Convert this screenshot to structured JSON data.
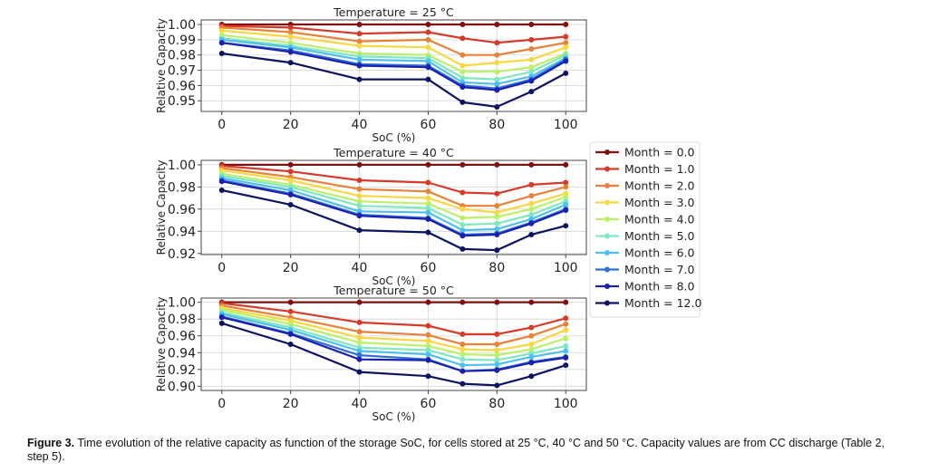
{
  "chart_data": [
    {
      "type": "line",
      "title": "Temperature = 25 °C",
      "xlabel": "SoC (%)",
      "ylabel": "Relative Capacity",
      "x": [
        0,
        20,
        40,
        60,
        70,
        80,
        90,
        100
      ],
      "xticks": [
        "0",
        "20",
        "40",
        "60",
        "80",
        "100"
      ],
      "xtick_values": [
        0,
        20,
        40,
        60,
        80,
        100
      ],
      "yticks": [
        "0.95",
        "0.96",
        "0.97",
        "0.98",
        "0.99",
        "1.00"
      ],
      "ytick_values": [
        0.95,
        0.96,
        0.97,
        0.98,
        0.99,
        1.0
      ],
      "xlim": [
        -6,
        106
      ],
      "ylim": [
        0.943,
        1.003
      ],
      "grid": true,
      "series": [
        {
          "name": "Month = 0.0",
          "values": [
            1.0,
            1.0,
            1.0,
            1.0,
            1.0,
            1.0,
            1.0,
            1.0
          ]
        },
        {
          "name": "Month = 1.0",
          "values": [
            0.999,
            0.998,
            0.994,
            0.995,
            0.991,
            0.988,
            0.99,
            0.992
          ]
        },
        {
          "name": "Month = 2.0",
          "values": [
            0.998,
            0.995,
            0.989,
            0.99,
            0.98,
            0.98,
            0.984,
            0.988
          ]
        },
        {
          "name": "Month = 3.0",
          "values": [
            0.996,
            0.992,
            0.986,
            0.985,
            0.973,
            0.975,
            0.977,
            0.985
          ]
        },
        {
          "name": "Month = 4.0",
          "values": [
            0.993,
            0.988,
            0.981,
            0.98,
            0.969,
            0.969,
            0.972,
            0.981
          ]
        },
        {
          "name": "Month = 5.0",
          "values": [
            0.991,
            0.986,
            0.979,
            0.978,
            0.965,
            0.964,
            0.969,
            0.98
          ]
        },
        {
          "name": "Month = 6.0",
          "values": [
            0.99,
            0.985,
            0.977,
            0.976,
            0.962,
            0.961,
            0.966,
            0.978
          ]
        },
        {
          "name": "Month = 7.0",
          "values": [
            0.988,
            0.983,
            0.974,
            0.973,
            0.96,
            0.958,
            0.964,
            0.977
          ]
        },
        {
          "name": "Month = 8.0",
          "values": [
            0.988,
            0.982,
            0.973,
            0.972,
            0.959,
            0.957,
            0.963,
            0.976
          ]
        },
        {
          "name": "Month = 12.0",
          "values": [
            0.981,
            0.975,
            0.964,
            0.964,
            0.949,
            0.946,
            0.956,
            0.968
          ]
        }
      ]
    },
    {
      "type": "line",
      "title": "Temperature = 40 °C",
      "xlabel": "SoC (%)",
      "ylabel": "Relative Capacity",
      "x": [
        0,
        20,
        40,
        60,
        70,
        80,
        90,
        100
      ],
      "xticks": [
        "0",
        "20",
        "40",
        "60",
        "80",
        "100"
      ],
      "xtick_values": [
        0,
        20,
        40,
        60,
        80,
        100
      ],
      "yticks": [
        "0.92",
        "0.94",
        "0.96",
        "0.98",
        "1.00"
      ],
      "ytick_values": [
        0.92,
        0.94,
        0.96,
        0.98,
        1.0
      ],
      "xlim": [
        -6,
        106
      ],
      "ylim": [
        0.919,
        1.004
      ],
      "grid": true,
      "series": [
        {
          "name": "Month = 0.0",
          "values": [
            1.0,
            1.0,
            1.0,
            1.0,
            1.0,
            1.0,
            1.0,
            1.0
          ]
        },
        {
          "name": "Month = 1.0",
          "values": [
            0.999,
            0.994,
            0.986,
            0.984,
            0.975,
            0.974,
            0.982,
            0.984
          ]
        },
        {
          "name": "Month = 2.0",
          "values": [
            0.997,
            0.989,
            0.978,
            0.976,
            0.963,
            0.963,
            0.972,
            0.98
          ]
        },
        {
          "name": "Month = 3.0",
          "values": [
            0.995,
            0.986,
            0.972,
            0.97,
            0.96,
            0.957,
            0.965,
            0.974
          ]
        },
        {
          "name": "Month = 4.0",
          "values": [
            0.992,
            0.982,
            0.967,
            0.965,
            0.952,
            0.953,
            0.96,
            0.971
          ]
        },
        {
          "name": "Month = 5.0",
          "values": [
            0.99,
            0.98,
            0.963,
            0.961,
            0.946,
            0.947,
            0.955,
            0.967
          ]
        },
        {
          "name": "Month = 6.0",
          "values": [
            0.988,
            0.977,
            0.958,
            0.957,
            0.941,
            0.942,
            0.951,
            0.964
          ]
        },
        {
          "name": "Month = 7.0",
          "values": [
            0.986,
            0.974,
            0.955,
            0.952,
            0.937,
            0.938,
            0.948,
            0.96
          ]
        },
        {
          "name": "Month = 8.0",
          "values": [
            0.985,
            0.973,
            0.954,
            0.951,
            0.936,
            0.937,
            0.947,
            0.959
          ]
        },
        {
          "name": "Month = 12.0",
          "values": [
            0.977,
            0.964,
            0.941,
            0.939,
            0.924,
            0.923,
            0.937,
            0.945
          ]
        }
      ]
    },
    {
      "type": "line",
      "title": "Temperature = 50 °C",
      "xlabel": "SoC (%)",
      "ylabel": "Relative Capacity",
      "x": [
        0,
        20,
        40,
        60,
        70,
        80,
        90,
        100
      ],
      "xticks": [
        "0",
        "20",
        "40",
        "60",
        "80",
        "100"
      ],
      "xtick_values": [
        0,
        20,
        40,
        60,
        80,
        100
      ],
      "yticks": [
        "0.90",
        "0.92",
        "0.94",
        "0.96",
        "0.98",
        "1.00"
      ],
      "ytick_values": [
        0.9,
        0.92,
        0.94,
        0.96,
        0.98,
        1.0
      ],
      "xlim": [
        -6,
        106
      ],
      "ylim": [
        0.895,
        1.005
      ],
      "grid": true,
      "series": [
        {
          "name": "Month = 0.0",
          "values": [
            1.0,
            1.0,
            1.0,
            1.0,
            1.0,
            1.0,
            1.0,
            1.0
          ]
        },
        {
          "name": "Month = 1.0",
          "values": [
            0.999,
            0.989,
            0.976,
            0.972,
            0.962,
            0.962,
            0.97,
            0.981
          ]
        },
        {
          "name": "Month = 2.0",
          "values": [
            0.996,
            0.982,
            0.965,
            0.961,
            0.95,
            0.95,
            0.96,
            0.974
          ]
        },
        {
          "name": "Month = 3.0",
          "values": [
            0.993,
            0.978,
            0.958,
            0.954,
            0.944,
            0.943,
            0.95,
            0.967
          ]
        },
        {
          "name": "Month = 4.0",
          "values": [
            0.991,
            0.974,
            0.952,
            0.948,
            0.938,
            0.937,
            0.944,
            0.957
          ]
        },
        {
          "name": "Month = 5.0",
          "values": [
            0.988,
            0.97,
            0.946,
            0.943,
            0.932,
            0.931,
            0.939,
            0.948
          ]
        },
        {
          "name": "Month = 6.0",
          "values": [
            0.986,
            0.967,
            0.942,
            0.938,
            0.925,
            0.926,
            0.935,
            0.942
          ]
        },
        {
          "name": "Month = 7.0",
          "values": [
            0.983,
            0.963,
            0.937,
            0.932,
            0.918,
            0.92,
            0.929,
            0.935
          ]
        },
        {
          "name": "Month = 8.0",
          "values": [
            0.982,
            0.962,
            0.932,
            0.931,
            0.918,
            0.919,
            0.928,
            0.934
          ]
        },
        {
          "name": "Month = 12.0",
          "values": [
            0.975,
            0.95,
            0.917,
            0.912,
            0.903,
            0.901,
            0.912,
            0.925
          ]
        }
      ]
    }
  ],
  "series_colors": [
    "#7f1010",
    "#d63a28",
    "#e8823a",
    "#f7d743",
    "#bdf06a",
    "#7fe8c0",
    "#4fbfee",
    "#2f6fd6",
    "#1a20b0",
    "#0c1460"
  ],
  "legend": {
    "placement": "right",
    "entries": [
      "Month = 0.0",
      "Month = 1.0",
      "Month = 2.0",
      "Month = 3.0",
      "Month = 4.0",
      "Month = 5.0",
      "Month = 6.0",
      "Month = 7.0",
      "Month = 8.0",
      "Month = 12.0"
    ]
  },
  "caption": {
    "label": "Figure 3.",
    "text": " Time evolution of the relative capacity as function of the storage SoC, for cells stored at 25 °C, 40 °C and 50 °C. Capacity values are from CC discharge (Table 2, step 5)."
  }
}
